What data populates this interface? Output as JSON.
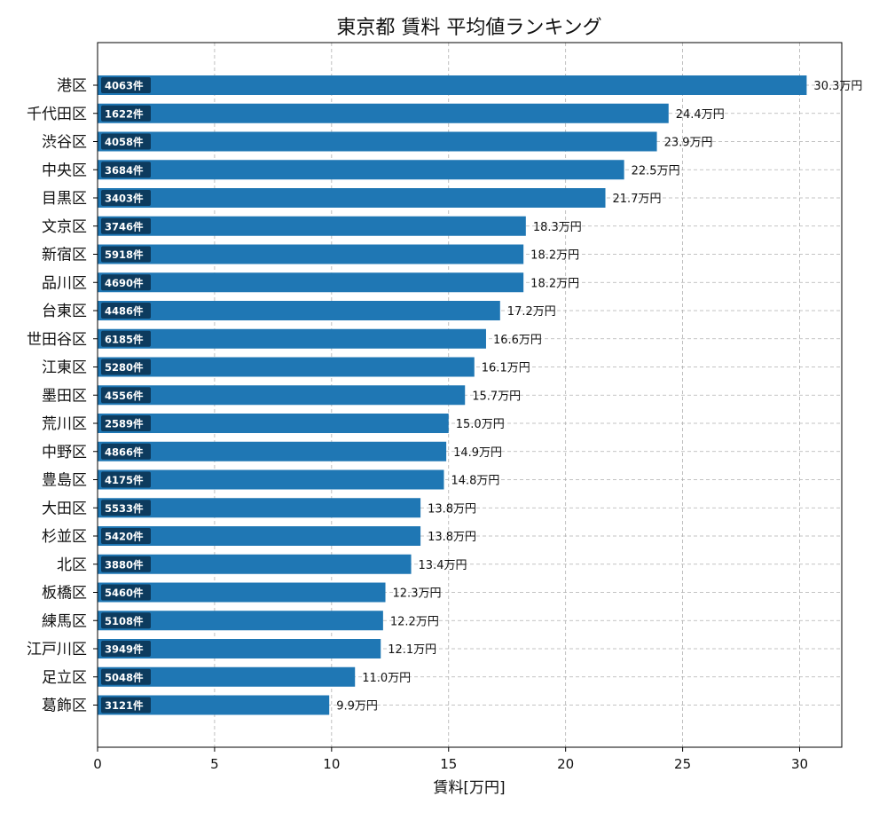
{
  "chart_data": {
    "type": "bar",
    "orientation": "horizontal",
    "title": "東京都 賃料 平均値ランキング",
    "xlabel": "賃料[万円]",
    "ylabel": "",
    "xlim": [
      0,
      31.8
    ],
    "xticks": [
      0,
      5,
      10,
      15,
      20,
      25,
      30
    ],
    "grid": true,
    "value_suffix": "万円",
    "count_suffix": "件",
    "bar_color": "#1f77b4",
    "count_badge_color": "#0d3b5e",
    "categories": [
      "港区",
      "千代田区",
      "渋谷区",
      "中央区",
      "目黒区",
      "文京区",
      "新宿区",
      "品川区",
      "台東区",
      "世田谷区",
      "江東区",
      "墨田区",
      "荒川区",
      "中野区",
      "豊島区",
      "大田区",
      "杉並区",
      "北区",
      "板橋区",
      "練馬区",
      "江戸川区",
      "足立区",
      "葛飾区"
    ],
    "values": [
      30.3,
      24.4,
      23.9,
      22.5,
      21.7,
      18.3,
      18.2,
      18.2,
      17.2,
      16.6,
      16.1,
      15.7,
      15.0,
      14.9,
      14.8,
      13.8,
      13.8,
      13.4,
      12.3,
      12.2,
      12.1,
      11.0,
      9.9
    ],
    "counts": [
      4063,
      1622,
      4058,
      3684,
      3403,
      3746,
      5918,
      4690,
      4486,
      6185,
      5280,
      4556,
      2589,
      4866,
      4175,
      5533,
      5420,
      3880,
      5460,
      5108,
      3949,
      5048,
      3121
    ]
  }
}
